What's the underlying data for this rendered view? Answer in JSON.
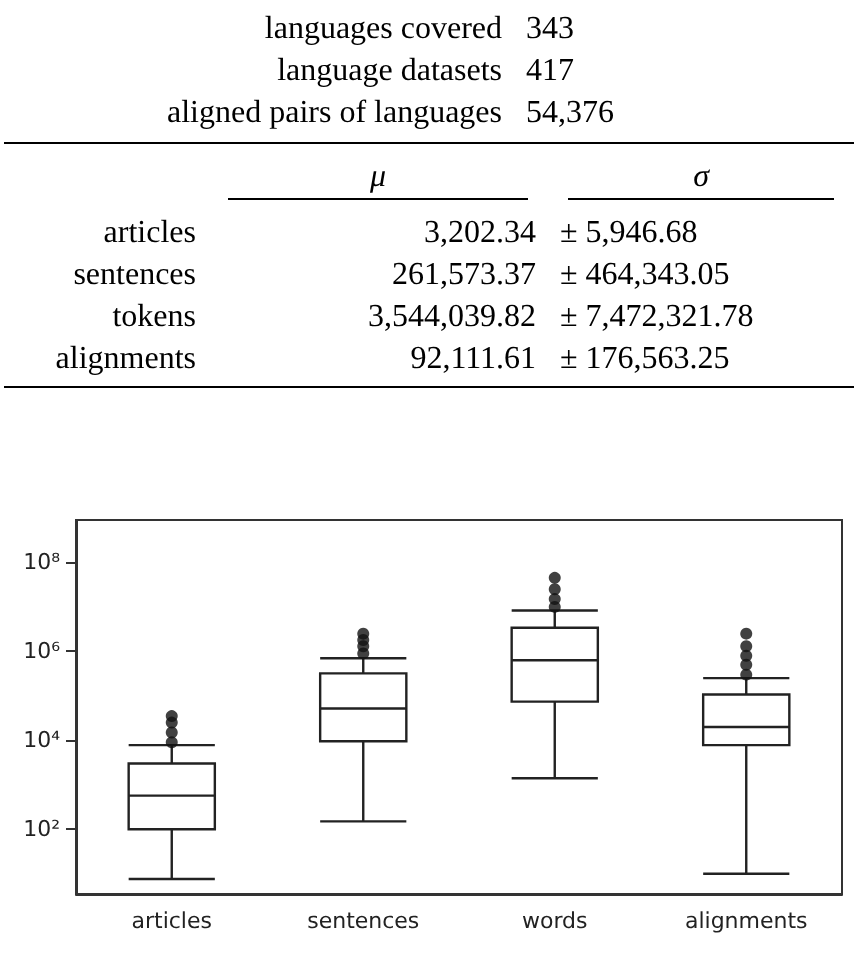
{
  "chart_data": [
    {
      "type": "other",
      "annotations": [
        "languages covered",
        "343",
        "language datasets",
        "417",
        "aligned pairs of languages",
        "54,376",
        "μ",
        "σ",
        "articles",
        "3,202.34",
        "± 5,946.68",
        "sentences",
        "261,573.37",
        "± 464,343.05",
        "tokens",
        "3,544,039.82",
        "± 7,472,321.78",
        "alignments",
        "92,111.61",
        "± 176,563.25"
      ]
    },
    {
      "type": "box",
      "categories": [
        "articles",
        "sentences",
        "words",
        "alignments"
      ],
      "log": true,
      "ylim": [
        3.5,
        900000000
      ],
      "yticks": [
        {
          "value": 100,
          "label": "10²"
        },
        {
          "value": 10000,
          "label": "10⁴"
        },
        {
          "value": 1000000,
          "label": "10⁶"
        },
        {
          "value": 100000000,
          "label": "10⁸"
        }
      ],
      "grid": false,
      "boxes": [
        {
          "low": 7.6,
          "q1": 100,
          "median": 570,
          "q3": 3000,
          "high": 7800,
          "outliers": [
            9000,
            15000,
            25000,
            35000
          ]
        },
        {
          "low": 150,
          "q1": 9500,
          "median": 52000,
          "q3": 320000,
          "high": 700000,
          "outliers": [
            900000,
            1300000,
            1800000,
            2500000
          ]
        },
        {
          "low": 1400,
          "q1": 74000,
          "median": 630000,
          "q3": 3400000,
          "high": 8300000,
          "outliers": [
            10000000,
            15000000,
            25000000,
            45000000
          ]
        },
        {
          "low": 10,
          "q1": 7800,
          "median": 20000,
          "q3": 107000,
          "high": 250000,
          "outliers": [
            300000,
            500000,
            800000,
            1300000,
            2500000
          ]
        }
      ]
    }
  ]
}
